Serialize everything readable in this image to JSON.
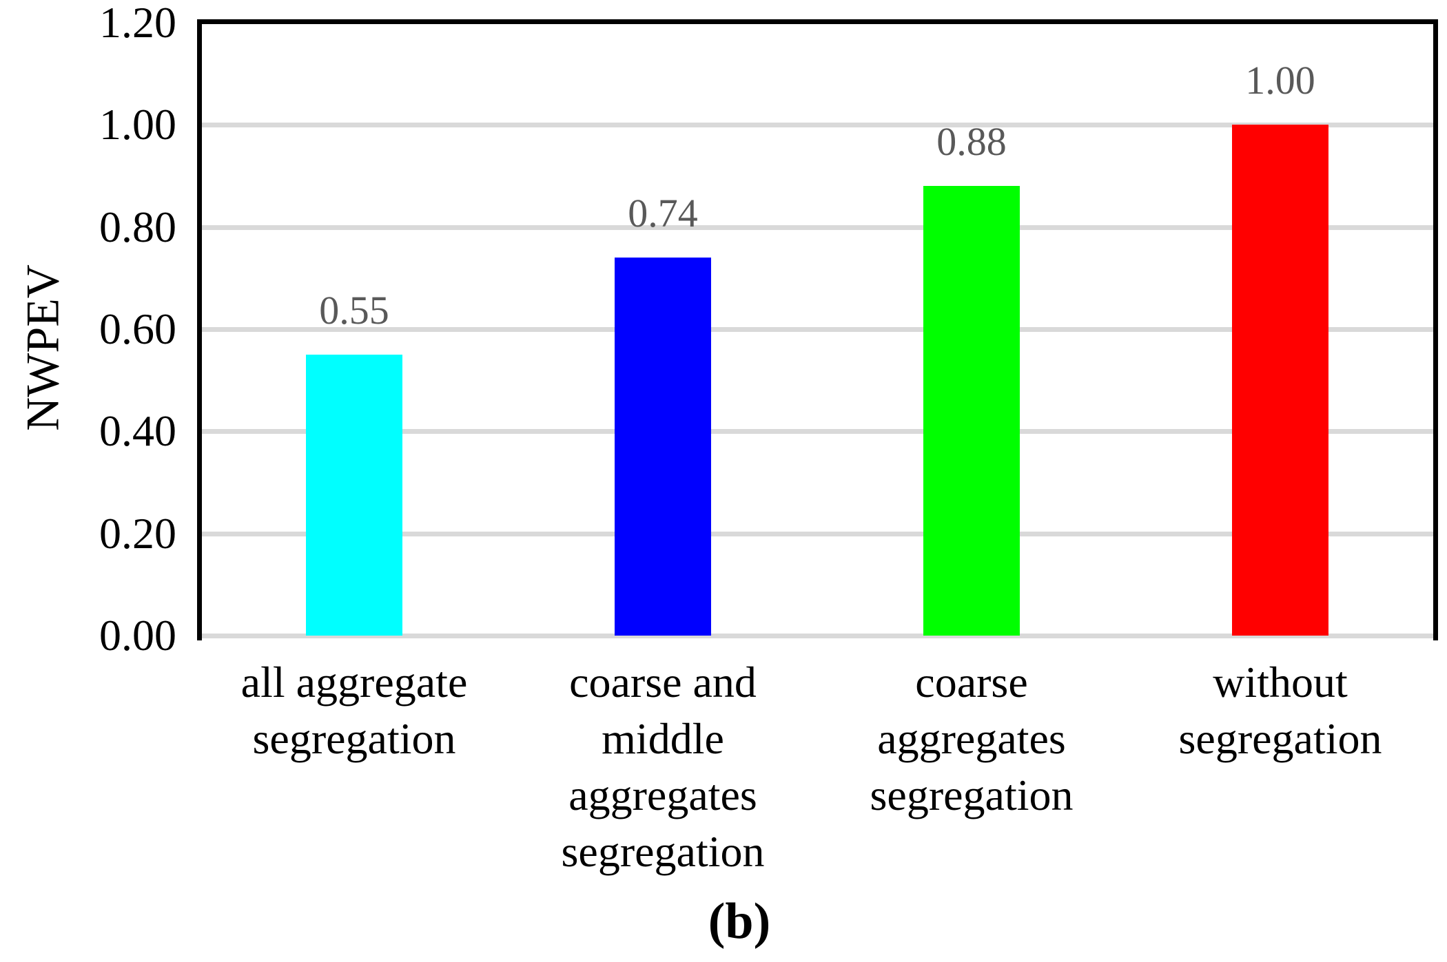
{
  "figure": {
    "caption": "(b)"
  },
  "chart_data": {
    "type": "bar",
    "title": "",
    "xlabel": "",
    "ylabel": "NWPEV",
    "categories": [
      "all aggregate segregation",
      "coarse and middle aggregates segregation",
      "coarse aggregates segregation",
      "without segregation"
    ],
    "category_lines": [
      [
        "all aggregate",
        "segregation"
      ],
      [
        "coarse and",
        "middle",
        "aggregates",
        "segregation"
      ],
      [
        "coarse",
        "aggregates",
        "segregation"
      ],
      [
        "without",
        "segregation"
      ]
    ],
    "values": [
      0.55,
      0.74,
      0.88,
      1.0
    ],
    "data_labels": [
      "0.55",
      "0.74",
      "0.88",
      "1.00"
    ],
    "bar_colors": [
      "#00FFFF",
      "#0000FF",
      "#00FF00",
      "#FF0000"
    ],
    "ylim": [
      0,
      1.2
    ],
    "ytick_interval": 0.2,
    "yticks": [
      "0.00",
      "0.20",
      "0.40",
      "0.60",
      "0.80",
      "1.00",
      "1.20"
    ],
    "grid": "horizontal",
    "legend": "none",
    "colors": {
      "gridline": "#D9D9D9",
      "axis_border": "#000000",
      "data_label": "#595959",
      "tick_label": "#000000"
    }
  }
}
